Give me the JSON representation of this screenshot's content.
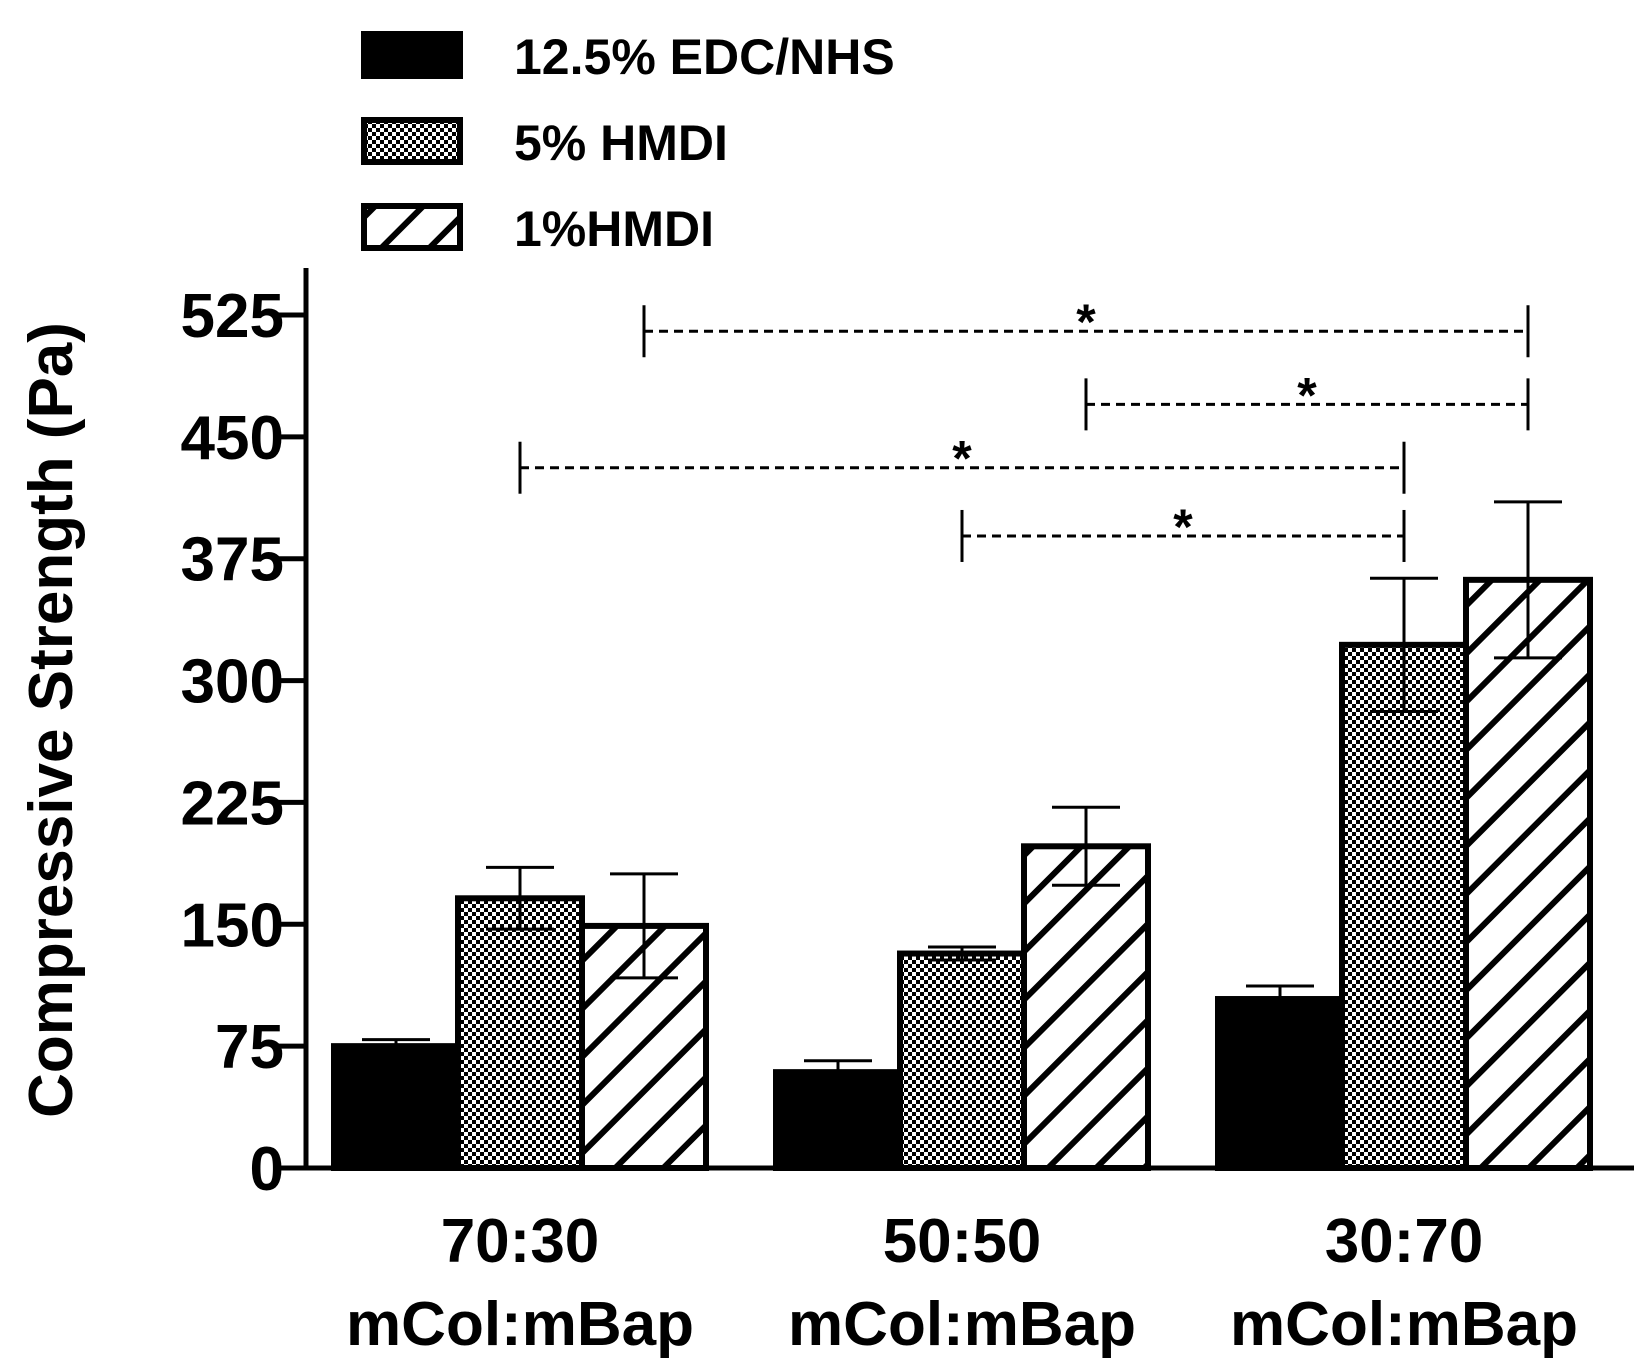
{
  "chart_data": {
    "type": "bar",
    "title": "",
    "ylabel": "Compressive Strength (Pa)",
    "xlabel": "",
    "ylim": [
      0,
      560
    ],
    "yticks": [
      0,
      75,
      150,
      225,
      300,
      375,
      450,
      525
    ],
    "categories": [
      {
        "line1": "70:30",
        "line2": "mCol:mBap"
      },
      {
        "line1": "50:50",
        "line2": "mCol:mBap"
      },
      {
        "line1": "30:70",
        "line2": "mCol:mBap"
      }
    ],
    "series": [
      {
        "name": "12.5% EDC/NHS",
        "pattern": "solid",
        "values": [
          75,
          59,
          104
        ],
        "errors": [
          4,
          7,
          8
        ]
      },
      {
        "name": "5% HMDI",
        "pattern": "checker",
        "values": [
          166,
          132,
          322
        ],
        "errors": [
          19,
          4,
          41
        ]
      },
      {
        "name": "1%HMDI",
        "pattern": "hatch",
        "values": [
          149,
          198,
          362
        ],
        "errors": [
          32,
          24,
          48
        ]
      }
    ],
    "significance": [
      {
        "from_group": 0,
        "from_series": 2,
        "to_group": 2,
        "to_series": 2,
        "y": 515,
        "label": "*"
      },
      {
        "from_group": 1,
        "from_series": 2,
        "to_group": 2,
        "to_series": 2,
        "y": 470,
        "label": "*"
      },
      {
        "from_group": 0,
        "from_series": 1,
        "to_group": 2,
        "to_series": 1,
        "y": 431,
        "label": "*"
      },
      {
        "from_group": 1,
        "from_series": 1,
        "to_group": 2,
        "to_series": 1,
        "y": 389,
        "label": "*"
      }
    ],
    "legend_position": "top-left",
    "colors": {
      "bar_fill": "#000000",
      "background": "#ffffff",
      "stroke": "#000000"
    }
  }
}
